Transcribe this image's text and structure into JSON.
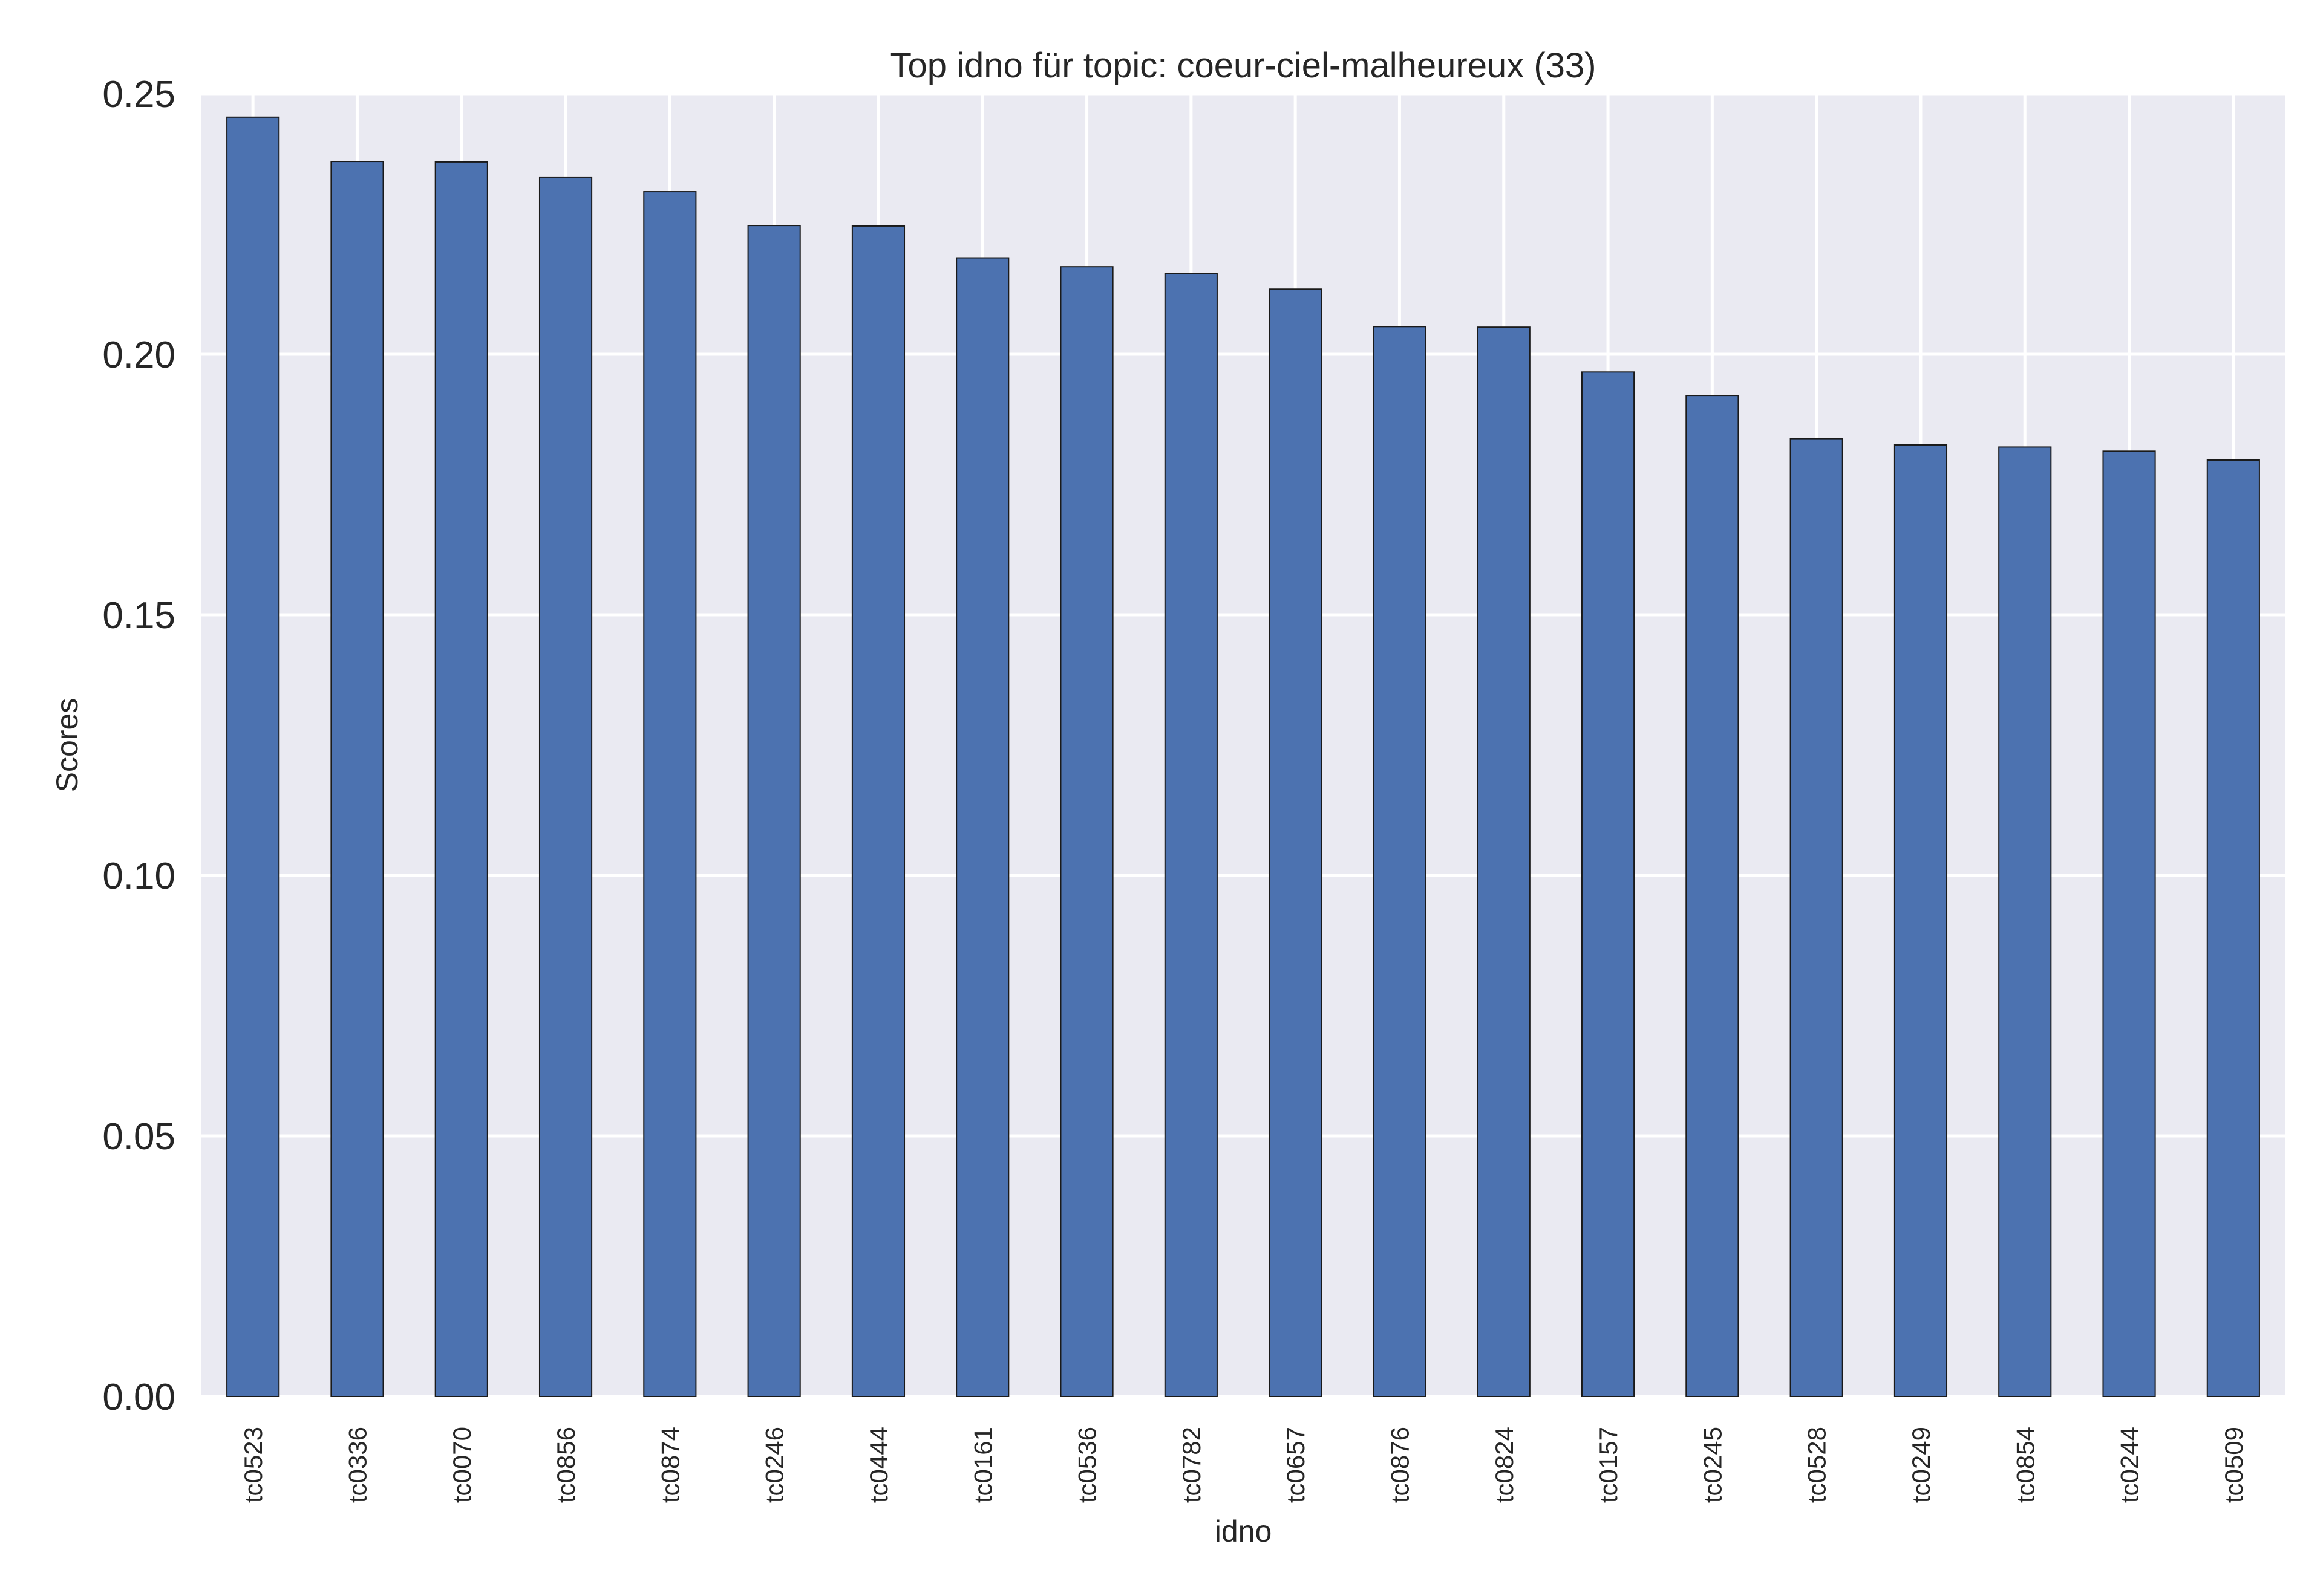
{
  "chart_data": {
    "type": "bar",
    "title": "Top idno für topic: coeur-ciel-malheureux (33)",
    "xlabel": "idno",
    "ylabel": "Scores",
    "ylim": [
      0,
      0.25
    ],
    "yticks": [
      "0.00",
      "0.05",
      "0.10",
      "0.15",
      "0.20",
      "0.25"
    ],
    "grid": true,
    "categories": [
      "tc0523",
      "tc0336",
      "tc0070",
      "tc0856",
      "tc0874",
      "tc0246",
      "tc0444",
      "tc0161",
      "tc0536",
      "tc0782",
      "tc0657",
      "tc0876",
      "tc0824",
      "tc0157",
      "tc0245",
      "tc0528",
      "tc0249",
      "tc0854",
      "tc0244",
      "tc0509"
    ],
    "values": [
      0.2455,
      0.237,
      0.2369,
      0.234,
      0.2312,
      0.2247,
      0.2246,
      0.2185,
      0.2168,
      0.2155,
      0.2125,
      0.2053,
      0.2052,
      0.1966,
      0.1921,
      0.1838,
      0.1826,
      0.1822,
      0.1814,
      0.1797
    ],
    "colors": {
      "bar": "#4c72b0",
      "bar_edge": "#1a1a1a",
      "plot_background": "#eaeaf2",
      "grid": "#ffffff",
      "text": "#262626"
    }
  }
}
